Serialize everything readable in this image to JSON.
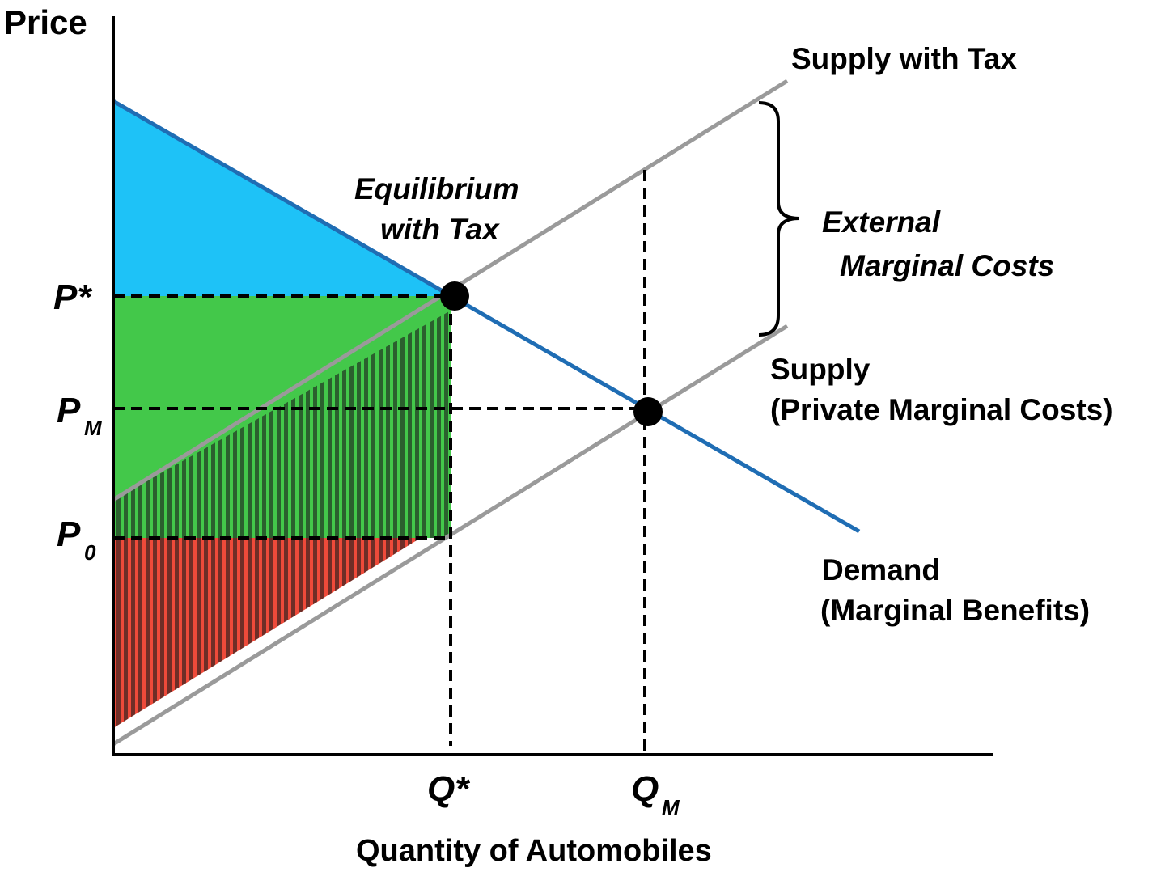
{
  "axes": {
    "y_label": "Price",
    "x_label": "Quantity of Automobiles"
  },
  "price_ticks": [
    {
      "main": "P*",
      "sub": ""
    },
    {
      "main": "P",
      "sub": "M"
    },
    {
      "main": "P",
      "sub": "0"
    }
  ],
  "quantity_ticks": [
    {
      "main": "Q*",
      "sub": ""
    },
    {
      "main": "Q",
      "sub": "M"
    }
  ],
  "curves": {
    "supply_with_tax": "Supply with Tax",
    "supply_line1": "Supply",
    "supply_line2": "(Private Marginal Costs)",
    "demand_line1": "Demand",
    "demand_line2": "(Marginal Benefits)"
  },
  "annotations": {
    "equilibrium_line1": "Equilibrium",
    "equilibrium_line2": "with Tax",
    "external_line1": "External",
    "external_line2": "Marginal Costs"
  },
  "colors": {
    "demand": "#1f6db4",
    "supply": "#9a9a9a",
    "consumer_surplus": "#1ec2f7",
    "tax_revenue": "#43c84a",
    "producer_surplus": "#ee4a3a",
    "hatch": "#1a1a1a"
  }
}
